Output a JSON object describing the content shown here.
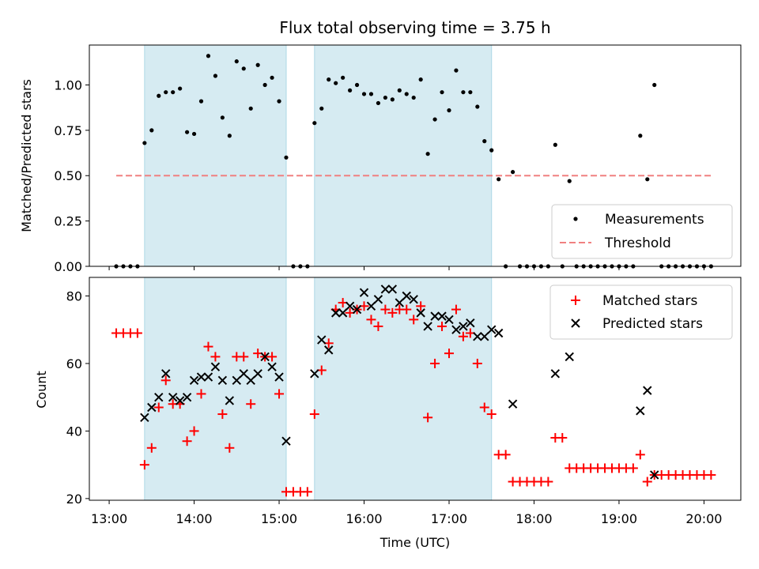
{
  "chart_data": [
    {
      "type": "scatter",
      "title": "Flux total observing time = 3.75 h",
      "xlabel": "",
      "ylabel": "Matched/Predicted stars",
      "xlim": [
        "12:46",
        "20:26"
      ],
      "ylim": [
        0,
        1.22
      ],
      "yticks": [
        0.0,
        0.25,
        0.5,
        0.75,
        1.0
      ],
      "ytick_labels": [
        "0.00",
        "0.25",
        "0.50",
        "0.75",
        "1.00"
      ],
      "legend_position": "lower-right",
      "shaded_intervals": [
        [
          "13:25",
          "15:05"
        ],
        [
          "15:25",
          "17:30"
        ]
      ],
      "threshold": {
        "name": "Threshold",
        "y": 0.5,
        "x_start": "13:05",
        "x_end": "20:05",
        "color": "#f08080"
      },
      "series": [
        {
          "name": "Measurements",
          "color": "#000000",
          "x": [
            "13:05",
            "13:10",
            "13:15",
            "13:20",
            "13:25",
            "13:30",
            "13:35",
            "13:40",
            "13:45",
            "13:50",
            "13:55",
            "14:00",
            "14:05",
            "14:10",
            "14:15",
            "14:20",
            "14:25",
            "14:30",
            "14:35",
            "14:40",
            "14:45",
            "14:50",
            "14:55",
            "15:00",
            "15:05",
            "15:10",
            "15:15",
            "15:20",
            "15:25",
            "15:30",
            "15:35",
            "15:40",
            "15:45",
            "15:50",
            "15:55",
            "16:00",
            "16:05",
            "16:10",
            "16:15",
            "16:20",
            "16:25",
            "16:30",
            "16:35",
            "16:40",
            "16:45",
            "16:50",
            "16:55",
            "17:00",
            "17:05",
            "17:10",
            "17:15",
            "17:20",
            "17:25",
            "17:30",
            "17:35",
            "17:40",
            "17:45",
            "17:50",
            "17:55",
            "18:00",
            "18:05",
            "18:10",
            "18:15",
            "18:20",
            "18:25",
            "18:30",
            "18:35",
            "18:40",
            "18:45",
            "18:50",
            "18:55",
            "19:00",
            "19:05",
            "19:10",
            "19:15",
            "19:20",
            "19:25",
            "19:30",
            "19:35",
            "19:40",
            "19:45",
            "19:50",
            "19:55",
            "20:00",
            "20:05"
          ],
          "y": [
            0,
            0,
            0,
            0,
            0.68,
            0.75,
            0.94,
            0.96,
            0.96,
            0.98,
            0.74,
            0.73,
            0.91,
            1.16,
            1.05,
            0.82,
            0.72,
            1.13,
            1.09,
            0.87,
            1.11,
            1.0,
            1.04,
            0.91,
            0.6,
            0,
            0,
            0,
            0.79,
            0.87,
            1.03,
            1.01,
            1.04,
            0.97,
            1.0,
            0.95,
            0.95,
            0.9,
            0.93,
            0.92,
            0.97,
            0.95,
            0.93,
            1.03,
            0.62,
            0.81,
            0.96,
            0.86,
            1.08,
            0.96,
            0.96,
            0.88,
            0.69,
            0.64,
            0.48,
            0,
            0.52,
            0,
            0,
            0,
            0,
            0,
            0.67,
            0,
            0.47,
            0,
            0,
            0,
            0,
            0,
            0,
            0,
            0,
            0,
            0.72,
            0.48,
            1.0,
            0,
            0,
            0,
            0,
            0,
            0,
            0,
            0
          ]
        }
      ]
    },
    {
      "type": "scatter",
      "title": "",
      "xlabel": "Time (UTC)",
      "ylabel": "Count",
      "xlim": [
        "12:46",
        "20:26"
      ],
      "ylim": [
        19.5,
        85.5
      ],
      "yticks": [
        20,
        40,
        60,
        80
      ],
      "ytick_labels": [
        "20",
        "40",
        "60",
        "80"
      ],
      "xticks": [
        "13:00",
        "14:00",
        "15:00",
        "16:00",
        "17:00",
        "18:00",
        "19:00",
        "20:00"
      ],
      "legend_position": "top-right",
      "shaded_intervals": [
        [
          "13:25",
          "15:05"
        ],
        [
          "15:25",
          "17:30"
        ]
      ],
      "series": [
        {
          "name": "Matched stars",
          "color": "#ff0000",
          "marker": "plus",
          "x": [
            "13:05",
            "13:10",
            "13:15",
            "13:20",
            "13:25",
            "13:30",
            "13:35",
            "13:40",
            "13:45",
            "13:50",
            "13:55",
            "14:00",
            "14:05",
            "14:10",
            "14:15",
            "14:20",
            "14:25",
            "14:30",
            "14:35",
            "14:40",
            "14:45",
            "14:50",
            "14:55",
            "15:00",
            "15:05",
            "15:10",
            "15:15",
            "15:20",
            "15:25",
            "15:30",
            "15:35",
            "15:40",
            "15:45",
            "15:50",
            "15:55",
            "16:00",
            "16:05",
            "16:10",
            "16:15",
            "16:20",
            "16:25",
            "16:30",
            "16:35",
            "16:40",
            "16:45",
            "16:50",
            "16:55",
            "17:00",
            "17:05",
            "17:10",
            "17:15",
            "17:20",
            "17:25",
            "17:30",
            "17:35",
            "17:40",
            "17:45",
            "17:50",
            "17:55",
            "18:00",
            "18:05",
            "18:10",
            "18:15",
            "18:20",
            "18:25",
            "18:30",
            "18:35",
            "18:40",
            "18:45",
            "18:50",
            "18:55",
            "19:00",
            "19:05",
            "19:10",
            "19:15",
            "19:20",
            "19:25",
            "19:30",
            "19:35",
            "19:40",
            "19:45",
            "19:50",
            "19:55",
            "20:00",
            "20:05"
          ],
          "y": [
            69,
            69,
            69,
            69,
            30,
            35,
            47,
            55,
            48,
            48,
            37,
            40,
            51,
            65,
            62,
            45,
            35,
            62,
            62,
            48,
            63,
            62,
            62,
            51,
            22,
            22,
            22,
            22,
            45,
            58,
            66,
            76,
            78,
            75,
            76,
            77,
            73,
            71,
            76,
            75,
            76,
            76,
            73,
            77,
            44,
            60,
            71,
            63,
            76,
            68,
            69,
            60,
            47,
            45,
            33,
            33,
            25,
            25,
            25,
            25,
            25,
            25,
            38,
            38,
            29,
            29,
            29,
            29,
            29,
            29,
            29,
            29,
            29,
            29,
            33,
            25,
            27,
            27,
            27,
            27,
            27,
            27,
            27,
            27,
            27
          ]
        },
        {
          "name": "Predicted stars",
          "color": "#000000",
          "marker": "x",
          "x": [
            "13:25",
            "13:30",
            "13:35",
            "13:40",
            "13:45",
            "13:50",
            "13:55",
            "14:00",
            "14:05",
            "14:10",
            "14:15",
            "14:20",
            "14:25",
            "14:30",
            "14:35",
            "14:40",
            "14:45",
            "14:50",
            "14:55",
            "15:00",
            "15:05",
            "15:25",
            "15:30",
            "15:35",
            "15:40",
            "15:45",
            "15:50",
            "15:55",
            "16:00",
            "16:05",
            "16:10",
            "16:15",
            "16:20",
            "16:25",
            "16:30",
            "16:35",
            "16:40",
            "16:45",
            "16:50",
            "16:55",
            "17:00",
            "17:05",
            "17:10",
            "17:15",
            "17:20",
            "17:25",
            "17:30",
            "17:35",
            "17:45",
            "18:15",
            "18:25",
            "19:15",
            "19:20",
            "19:25"
          ],
          "y": [
            44,
            47,
            50,
            57,
            50,
            49,
            50,
            55,
            56,
            56,
            59,
            55,
            49,
            55,
            57,
            55,
            57,
            62,
            59,
            56,
            37,
            57,
            67,
            64,
            75,
            75,
            77,
            76,
            81,
            77,
            79,
            82,
            82,
            78,
            80,
            79,
            75,
            71,
            74,
            74,
            73,
            70,
            71,
            72,
            68,
            68,
            70,
            69,
            48,
            57,
            62,
            46,
            52,
            27
          ]
        }
      ]
    }
  ]
}
